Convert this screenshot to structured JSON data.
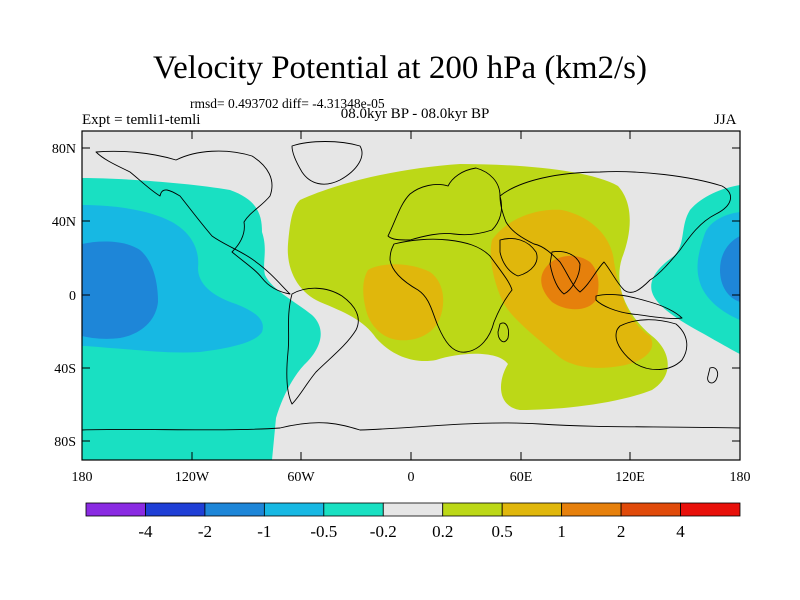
{
  "title": "Velocity Potential at 200 hPa (km2/s)",
  "stats_line": "rmsd= 0.493702   diff= -4.31348e-05",
  "left_label": "Expt = temli1-temli",
  "center_label": "08.0kyr BP - 08.0kyr BP",
  "right_label": "JJA",
  "axes": {
    "lat_ticks": [
      {
        "label": "80N"
      },
      {
        "label": "40N"
      },
      {
        "label": "0"
      },
      {
        "label": "40S"
      },
      {
        "label": "80S"
      }
    ],
    "lon_ticks": [
      {
        "label": "180"
      },
      {
        "label": "120W"
      },
      {
        "label": "60W"
      },
      {
        "label": "0"
      },
      {
        "label": "60E"
      },
      {
        "label": "120E"
      },
      {
        "label": "180"
      }
    ]
  },
  "colorbar": {
    "colors": [
      "#8a2be2",
      "#1f3fd6",
      "#1e86d8",
      "#17b8e3",
      "#19e0c2",
      "#e6e6e6",
      "#bcd817",
      "#e0b70c",
      "#e6800c",
      "#e04a0a",
      "#e8100a"
    ],
    "labels": [
      "-4",
      "-2",
      "-1",
      "-0.5",
      "-0.2",
      "0.2",
      "0.5",
      "1",
      "2",
      "4"
    ]
  },
  "fill_colors": {
    "neutral": "#e6e6e6",
    "neg_02": "#19e0c2",
    "neg_05": "#17b8e3",
    "neg_1": "#1e86d8",
    "pos_02": "#bcd817",
    "pos_05": "#e0b70c",
    "pos_1": "#e6800c"
  }
}
